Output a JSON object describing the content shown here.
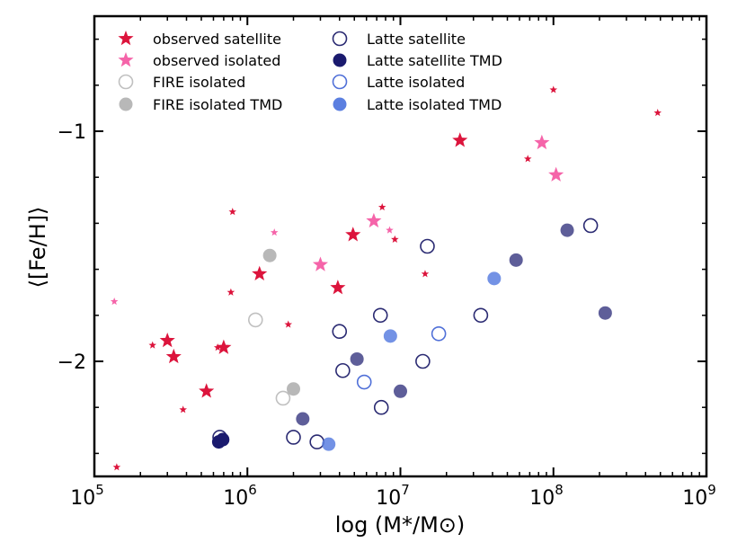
{
  "chart_data": {
    "type": "scatter",
    "xlabel": "log (M*/M⊙)",
    "ylabel": "⟨[Fe/H]⟩",
    "xscale": "log",
    "xlim": [
      100000,
      1000000000
    ],
    "ylim": [
      -2.5,
      -0.5
    ],
    "xticks": [
      {
        "value": 100000,
        "base": "10",
        "exp": "5"
      },
      {
        "value": 1000000,
        "base": "10",
        "exp": "6"
      },
      {
        "value": 10000000,
        "base": "10",
        "exp": "7"
      },
      {
        "value": 100000000,
        "base": "10",
        "exp": "8"
      },
      {
        "value": 1000000000,
        "base": "10",
        "exp": "9"
      }
    ],
    "yticks": [
      {
        "value": -1,
        "label": "−1"
      },
      {
        "value": -2,
        "label": "−2"
      }
    ],
    "legend_position": "top-left",
    "series": [
      {
        "name": "observed satellite",
        "marker": "star",
        "filled": true,
        "color": "#dc143c",
        "points": [
          {
            "x": 140000,
            "y": -2.46,
            "s": "small"
          },
          {
            "x": 240000,
            "y": -1.93,
            "s": "small"
          },
          {
            "x": 300000,
            "y": -1.91,
            "s": "large"
          },
          {
            "x": 330000,
            "y": -1.98,
            "s": "large"
          },
          {
            "x": 380000,
            "y": -2.21,
            "s": "small"
          },
          {
            "x": 540000,
            "y": -2.13,
            "s": "large"
          },
          {
            "x": 640000,
            "y": -1.94,
            "s": "small"
          },
          {
            "x": 700000,
            "y": -1.94,
            "s": "large"
          },
          {
            "x": 780000,
            "y": -1.7,
            "s": "small"
          },
          {
            "x": 800000,
            "y": -1.35,
            "s": "small"
          },
          {
            "x": 1200000,
            "y": -1.62,
            "s": "large"
          },
          {
            "x": 1850000,
            "y": -1.84,
            "s": "small"
          },
          {
            "x": 3900000,
            "y": -1.68,
            "s": "large"
          },
          {
            "x": 4900000,
            "y": -1.45,
            "s": "large"
          },
          {
            "x": 7600000,
            "y": -1.33,
            "s": "small"
          },
          {
            "x": 9200000,
            "y": -1.47,
            "s": "small"
          },
          {
            "x": 14500000,
            "y": -1.62,
            "s": "small"
          },
          {
            "x": 24500000,
            "y": -1.04,
            "s": "large"
          },
          {
            "x": 68000000,
            "y": -1.12,
            "s": "small"
          },
          {
            "x": 100000000,
            "y": -0.82,
            "s": "small"
          },
          {
            "x": 480000000,
            "y": -0.92,
            "s": "small"
          }
        ]
      },
      {
        "name": "observed isolated",
        "marker": "star",
        "filled": true,
        "color": "#f564a9",
        "points": [
          {
            "x": 135000,
            "y": -1.74,
            "s": "small"
          },
          {
            "x": 1500000,
            "y": -1.44,
            "s": "small"
          },
          {
            "x": 3000000,
            "y": -1.58,
            "s": "large"
          },
          {
            "x": 6700000,
            "y": -1.39,
            "s": "large"
          },
          {
            "x": 8500000,
            "y": -1.43,
            "s": "small"
          },
          {
            "x": 84000000,
            "y": -1.05,
            "s": "large"
          },
          {
            "x": 104000000,
            "y": -1.19,
            "s": "large"
          }
        ]
      },
      {
        "name": "FIRE isolated",
        "marker": "circle",
        "filled": false,
        "color": "#c0c0c0",
        "points": [
          {
            "x": 1130000,
            "y": -1.82
          },
          {
            "x": 1710000,
            "y": -2.16
          }
        ]
      },
      {
        "name": "FIRE isolated TMD",
        "marker": "circle",
        "filled": true,
        "color": "#b8b8b8",
        "points": [
          {
            "x": 1400000,
            "y": -1.54
          },
          {
            "x": 2000000,
            "y": -2.12
          }
        ]
      },
      {
        "name": "Latte satellite",
        "marker": "circle",
        "filled": false,
        "color": "#2a2a72",
        "points": [
          {
            "x": 660000,
            "y": -2.33
          },
          {
            "x": 2000000,
            "y": -2.33
          },
          {
            "x": 2850000,
            "y": -2.35
          },
          {
            "x": 4000000,
            "y": -1.87
          },
          {
            "x": 4200000,
            "y": -2.04
          },
          {
            "x": 7400000,
            "y": -1.8
          },
          {
            "x": 7500000,
            "y": -2.2
          },
          {
            "x": 14000000,
            "y": -2.0
          },
          {
            "x": 15000000,
            "y": -1.5
          },
          {
            "x": 33500000,
            "y": -1.8
          },
          {
            "x": 175000000,
            "y": -1.41
          }
        ]
      },
      {
        "name": "Latte satellite TMD",
        "marker": "circle",
        "filled": true,
        "color": "#1a1a6e",
        "points": [
          {
            "x": 650000,
            "y": -2.35,
            "alpha": 1.0
          },
          {
            "x": 690000,
            "y": -2.34,
            "alpha": 1.0
          },
          {
            "x": 2300000,
            "y": -2.25,
            "alpha": 0.7
          },
          {
            "x": 5200000,
            "y": -1.99,
            "alpha": 0.7
          },
          {
            "x": 10000000,
            "y": -2.13,
            "alpha": 0.7
          },
          {
            "x": 57000000,
            "y": -1.56,
            "alpha": 0.7
          },
          {
            "x": 123000000,
            "y": -1.43,
            "alpha": 0.7
          },
          {
            "x": 218000000,
            "y": -1.79,
            "alpha": 0.7
          }
        ]
      },
      {
        "name": "Latte isolated",
        "marker": "circle",
        "filled": false,
        "color": "#5070d8",
        "points": [
          {
            "x": 5800000,
            "y": -2.09
          },
          {
            "x": 17800000,
            "y": -1.88
          }
        ]
      },
      {
        "name": "Latte isolated TMD",
        "marker": "circle",
        "filled": true,
        "color": "#5b7fe0",
        "points": [
          {
            "x": 3400000,
            "y": -2.36,
            "alpha": 0.85
          },
          {
            "x": 8600000,
            "y": -1.89,
            "alpha": 0.85
          },
          {
            "x": 41000000,
            "y": -1.64,
            "alpha": 0.85
          }
        ]
      }
    ]
  }
}
